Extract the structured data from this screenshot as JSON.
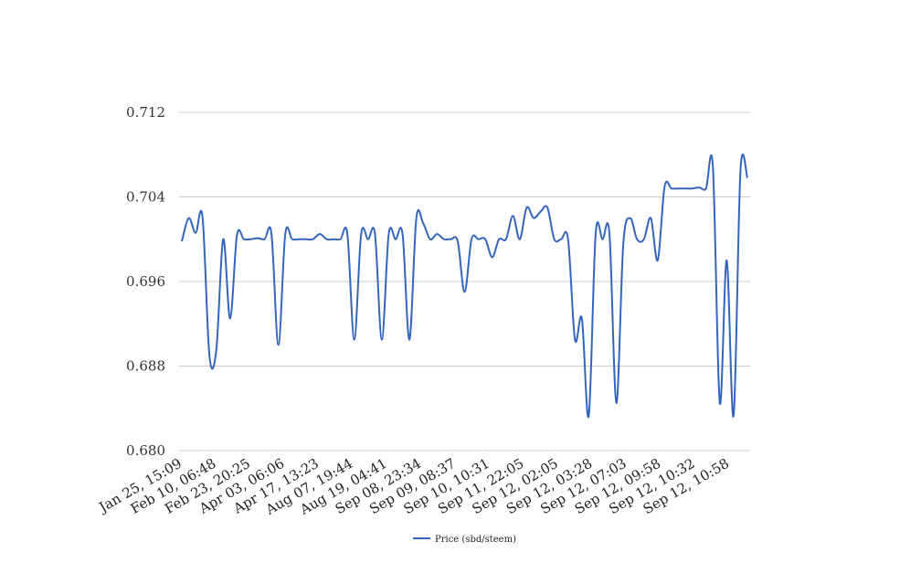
{
  "chart_data": {
    "type": "line",
    "title": "",
    "xlabel": "",
    "ylabel": "",
    "ylim": [
      0.68,
      0.712
    ],
    "y_ticks": [
      "0.680",
      "0.688",
      "0.696",
      "0.704",
      "0.712"
    ],
    "x_tick_labels": [
      "Jan 25, 15:09",
      "Feb 10, 06:48",
      "Feb 23, 20:25",
      "Apr 03, 06:06",
      "Apr 17, 13:23",
      "Aug 07, 19:44",
      "Aug 19, 04:41",
      "Sep 08, 23:34",
      "Sep 09, 08:37",
      "Sep 10, 10:31",
      "Sep 11, 22:05",
      "Sep 12, 02:05",
      "Sep 12, 03:28",
      "Sep 12, 07:03",
      "Sep 12, 09:58",
      "Sep 12, 10:32",
      "Sep 12, 10:58"
    ],
    "grid": true,
    "legend_position": "bottom",
    "color": "#3465be",
    "series": [
      {
        "name": "Price (sbd/steem)",
        "values": [
          0.6998,
          0.702,
          0.7006,
          0.7021,
          0.689,
          0.6895,
          0.7,
          0.6925,
          0.7004,
          0.7,
          0.7,
          0.7001,
          0.7,
          0.7005,
          0.69,
          0.7005,
          0.7,
          0.7,
          0.7,
          0.7,
          0.7005,
          0.7,
          0.7,
          0.7,
          0.7005,
          0.6905,
          0.7005,
          0.7,
          0.7005,
          0.6905,
          0.7005,
          0.7,
          0.7005,
          0.6905,
          0.702,
          0.7015,
          0.7,
          0.7005,
          0.7,
          0.7,
          0.6998,
          0.695,
          0.7,
          0.7,
          0.7,
          0.6983,
          0.7,
          0.7,
          0.7022,
          0.7,
          0.703,
          0.702,
          0.7026,
          0.703,
          0.7,
          0.7,
          0.7,
          0.6905,
          0.6925,
          0.6833,
          0.7005,
          0.7,
          0.7005,
          0.6845,
          0.6995,
          0.702,
          0.7,
          0.7,
          0.702,
          0.698,
          0.705,
          0.7048,
          0.7048,
          0.7048,
          0.7048,
          0.7049,
          0.7048,
          0.7068,
          0.6845,
          0.698,
          0.6833,
          0.7065,
          0.7058
        ]
      }
    ]
  }
}
